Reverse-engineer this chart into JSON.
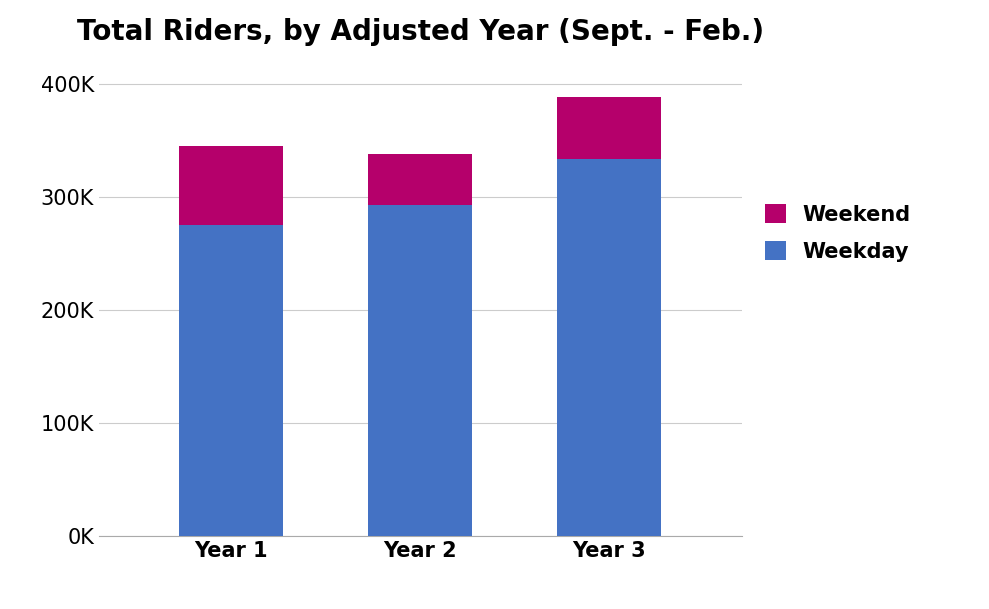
{
  "categories": [
    "Year 1",
    "Year 2",
    "Year 3"
  ],
  "weekday": [
    275000,
    293000,
    333000
  ],
  "weekend": [
    70000,
    45000,
    55000
  ],
  "weekday_color": "#4472C4",
  "weekend_color": "#B5006B",
  "title": "Total Riders, by Adjusted Year (Sept. - Feb.)",
  "ylim": [
    0,
    420000
  ],
  "yticks": [
    0,
    100000,
    200000,
    300000,
    400000
  ],
  "background_color": "#ffffff",
  "grid_color": "#cccccc",
  "title_fontsize": 20,
  "tick_fontsize": 15,
  "legend_fontsize": 15,
  "bar_width": 0.55
}
